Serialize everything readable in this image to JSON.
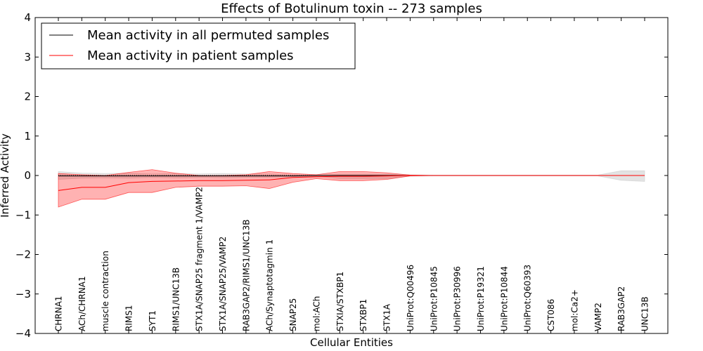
{
  "chart_data": {
    "type": "line",
    "title": "Effects of Botulinum toxin -- 273 samples",
    "xlabel": "Cellular Entities",
    "ylabel": "Inferred Activity",
    "ylim": [
      -4,
      4
    ],
    "yticks": [
      -4,
      -3,
      -2,
      -1,
      0,
      1,
      2,
      3,
      4
    ],
    "ytick_labels": [
      "−4",
      "−3",
      "−2",
      "−1",
      "0",
      "1",
      "2",
      "3",
      "4"
    ],
    "categories": [
      "CHRNA1",
      "ACh/CHRNA1",
      "muscle contraction",
      "RIMS1",
      "SYT1",
      "RIMS1/UNC13B",
      "STX1A/SNAP25 fragment 1/VAMP2",
      "STX1A/SNAP25/VAMP2",
      "RAB3GAP2/RIMS1/UNC13B",
      "ACh/Synaptotagmin 1",
      "SNAP25",
      "mol:ACh",
      "STXIA/STXBP1",
      "STXBP1",
      "STX1A",
      "UniProt:Q00496",
      "UniProt:P10845",
      "UniProt:P30996",
      "UniProt:P19321",
      "UniProt:P10844",
      "UniProt:Q60393",
      "CST086",
      "mol:Ca2+",
      "VAMP2",
      "RAB3GAP2",
      "UNC13B"
    ],
    "legend": {
      "location": "upper-left",
      "entries": [
        "Mean activity in all permuted samples",
        "Mean activity in patient samples"
      ]
    },
    "series": [
      {
        "name": "Mean activity in all permuted samples",
        "color": "#000000",
        "band_color": "#c8c8c8",
        "values": [
          -0.01,
          -0.01,
          -0.01,
          -0.01,
          -0.01,
          -0.01,
          -0.01,
          -0.01,
          -0.01,
          -0.01,
          -0.01,
          0.0,
          0.0,
          0.0,
          0.0,
          0.0,
          0.0,
          0.0,
          0.0,
          0.0,
          0.0,
          0.0,
          0.0,
          0.0,
          0.0,
          0.0
        ],
        "upper": [
          0.1,
          0.06,
          0.05,
          0.06,
          0.04,
          0.05,
          0.04,
          0.05,
          0.04,
          0.04,
          0.02,
          0.02,
          0.03,
          0.03,
          0.03,
          0.02,
          0.01,
          0.01,
          0.01,
          0.01,
          0.01,
          0.01,
          0.01,
          0.01,
          0.12,
          0.12
        ],
        "lower": [
          -0.1,
          -0.07,
          -0.06,
          -0.07,
          -0.05,
          -0.06,
          -0.05,
          -0.06,
          -0.05,
          -0.05,
          -0.03,
          -0.02,
          -0.08,
          -0.08,
          -0.08,
          -0.02,
          -0.01,
          -0.01,
          -0.01,
          -0.01,
          -0.01,
          -0.01,
          -0.01,
          -0.01,
          -0.12,
          -0.15
        ]
      },
      {
        "name": "Mean activity in patient samples",
        "color": "#ff0000",
        "band_color": "#ff0000",
        "values": [
          -0.38,
          -0.3,
          -0.3,
          -0.18,
          -0.15,
          -0.14,
          -0.13,
          -0.13,
          -0.12,
          -0.11,
          -0.05,
          -0.03,
          -0.02,
          -0.02,
          -0.01,
          0.0,
          0.0,
          0.0,
          0.0,
          0.0,
          0.0,
          0.0,
          0.0,
          0.0,
          0.0,
          0.0
        ],
        "upper": [
          0.05,
          0.02,
          0.0,
          0.08,
          0.15,
          0.06,
          0.0,
          0.0,
          0.02,
          0.1,
          0.05,
          0.02,
          0.1,
          0.1,
          0.07,
          0.01,
          0.0,
          0.0,
          0.0,
          0.0,
          0.0,
          0.0,
          0.0,
          0.0,
          0.0,
          0.0
        ],
        "lower": [
          -0.8,
          -0.6,
          -0.6,
          -0.43,
          -0.43,
          -0.3,
          -0.27,
          -0.27,
          -0.26,
          -0.33,
          -0.17,
          -0.08,
          -0.13,
          -0.13,
          -0.1,
          -0.01,
          0.0,
          0.0,
          0.0,
          0.0,
          0.0,
          0.0,
          0.0,
          0.0,
          0.0,
          0.0
        ]
      }
    ],
    "reference_line": {
      "y": 0,
      "style": "dotted",
      "color": "#000000"
    }
  }
}
